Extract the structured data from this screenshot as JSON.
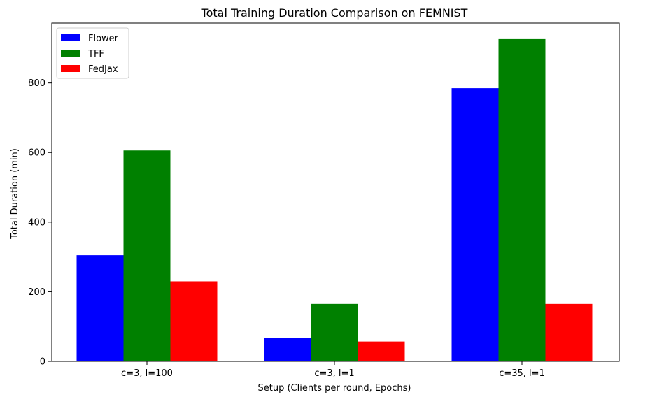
{
  "chart_data": {
    "type": "bar",
    "title": "Total Training Duration Comparison on FEMNIST",
    "xlabel": "Setup (Clients per round, Epochs)",
    "ylabel": "Total Duration (min)",
    "categories": [
      "c=3, l=100",
      "c=3, l=1",
      "c=35, l=1"
    ],
    "series": [
      {
        "name": "Flower",
        "color": "#0000ff",
        "values": [
          305,
          67,
          785
        ]
      },
      {
        "name": "TFF",
        "color": "#008000",
        "values": [
          606,
          165,
          926
        ]
      },
      {
        "name": "FedJax",
        "color": "#ff0000",
        "values": [
          230,
          57,
          165
        ]
      }
    ],
    "ylim": [
      0,
      972
    ],
    "yticks": [
      0,
      200,
      400,
      600,
      800
    ],
    "legend_position": "top-left",
    "grid": false
  }
}
